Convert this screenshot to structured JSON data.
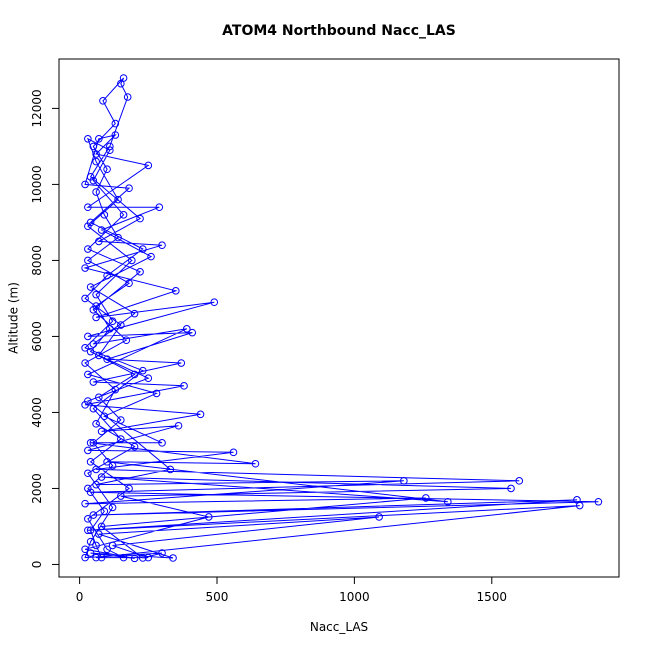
{
  "chart_data": {
    "type": "scatter",
    "lines": true,
    "title": "ATOM4 Northbound Nacc_LAS",
    "x_label": "Nacc_LAS",
    "y_label": "Altitude (m)",
    "x": [
      80,
      60,
      40,
      90,
      30,
      120,
      50,
      150,
      70,
      200,
      40,
      110,
      60,
      180,
      30,
      140,
      90,
      60,
      100,
      50,
      130,
      85,
      160,
      150,
      175,
      110,
      40,
      220,
      70,
      300,
      20,
      350,
      60,
      490,
      30,
      410,
      100,
      370,
      50,
      380,
      20,
      440,
      80,
      360,
      30,
      560,
      60,
      1600,
      40,
      1888,
      50,
      1810,
      30,
      1820,
      60,
      250,
      120,
      1090,
      70,
      340,
      40,
      200,
      20,
      470,
      150,
      1570,
      80,
      1340,
      100,
      640,
      40,
      300,
      90,
      280,
      30,
      390,
      50,
      200,
      40,
      260,
      80,
      290,
      30,
      250,
      60,
      130,
      70,
      20,
      180,
      40,
      230,
      100,
      20,
      150,
      70,
      250,
      30,
      330,
      60,
      1180,
      20,
      1260,
      80,
      230,
      300,
      20,
      40,
      120,
      30,
      200,
      60,
      130,
      20,
      170,
      50,
      220,
      30,
      160,
      50,
      110,
      30,
      60,
      140,
      30,
      190,
      60,
      120,
      20,
      230,
      50,
      150,
      40,
      180,
      30,
      100,
      160
    ],
    "series": [
      {
        "color": "#0000ff",
        "values": [
          180,
          500,
          900,
          1400,
          2000,
          2600,
          3200,
          3800,
          4400,
          5000,
          5600,
          6200,
          6800,
          7400,
          8000,
          8600,
          9200,
          9800,
          10400,
          11000,
          11600,
          12200,
          12800,
          12650,
          12300,
          11000,
          10200,
          9100,
          8500,
          8400,
          7800,
          7200,
          6500,
          6900,
          6000,
          6100,
          5400,
          5300,
          4800,
          4700,
          4200,
          3950,
          3500,
          3650,
          3000,
          2950,
          2500,
          2200,
          1900,
          1650,
          1300,
          1700,
          900,
          1550,
          180,
          180,
          500,
          1250,
          800,
          170,
          300,
          160,
          400,
          1250,
          1800,
          2000,
          2300,
          1650,
          2700,
          2650,
          3200,
          3200,
          3900,
          4500,
          5000,
          6200,
          5800,
          6600,
          7300,
          8100,
          8800,
          9400,
          9400,
          10500,
          10800,
          11300,
          11200,
          10000,
          9900,
          9000,
          8300,
          7600,
          7000,
          6300,
          5500,
          4900,
          4300,
          2500,
          2100,
          2200,
          1600,
          1750,
          1000,
          170,
          300,
          180,
          600,
          1500,
          2400,
          3100,
          3700,
          4600,
          5300,
          5900,
          6700,
          7700,
          8300,
          9200,
          10100,
          10900,
          11200,
          10600,
          9600,
          8900,
          8000,
          7100,
          6400,
          5700,
          5100,
          4100,
          3300,
          2700,
          2000,
          1200,
          400,
          180
        ]
      }
    ],
    "xlim": [
      -75,
      1963
    ],
    "ylim": [
      -330,
      13300
    ],
    "xticks": [
      0,
      500,
      1000,
      1500
    ],
    "yticks": [
      0,
      2000,
      4000,
      6000,
      8000,
      10000,
      12000
    ]
  }
}
